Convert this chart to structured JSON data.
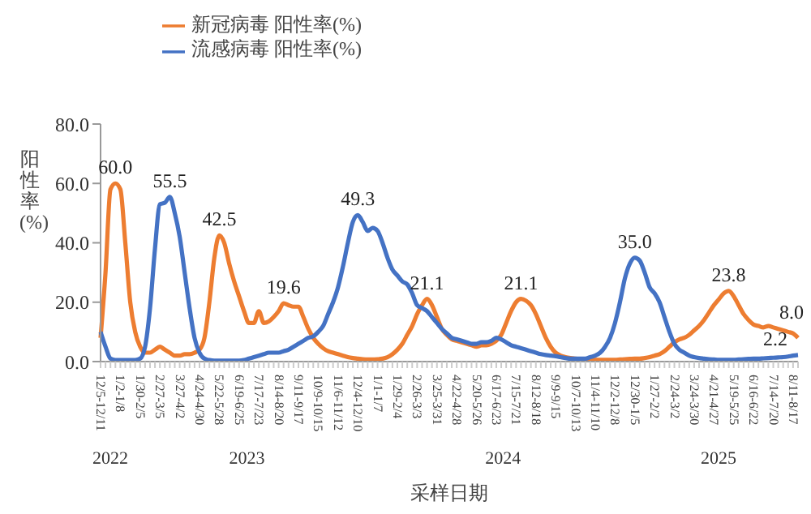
{
  "chart_data": {
    "type": "line",
    "xlabel": "采样日期",
    "ylabel": "阳性率(%)",
    "categories": [
      "12/5-12/11",
      null,
      null,
      null,
      "1/2-1/8",
      null,
      null,
      null,
      "1/30-2/5",
      null,
      null,
      null,
      "2/27-3/5",
      null,
      null,
      null,
      "3/27-4/2",
      null,
      null,
      null,
      "4/24-4/30",
      null,
      null,
      null,
      "5/22-5/28",
      null,
      null,
      null,
      "6/19-6/25",
      null,
      null,
      null,
      "7/17-7/23",
      null,
      null,
      null,
      "8/14-8/20",
      null,
      null,
      null,
      "9/11-9/17",
      null,
      null,
      null,
      "10/9-10/15",
      null,
      null,
      null,
      "11/6-11/12",
      null,
      null,
      null,
      "12/4-12/10",
      null,
      null,
      null,
      "1/1-1/7",
      null,
      null,
      null,
      "1/29-2/4",
      null,
      null,
      null,
      "2/26-3/3",
      null,
      null,
      null,
      "3/25-3/31",
      null,
      null,
      null,
      "4/22-4/28",
      null,
      null,
      null,
      "5/20-5/26",
      null,
      null,
      null,
      "6/17-6/23",
      null,
      null,
      null,
      "7/15-7/21",
      null,
      null,
      null,
      "8/12-8/18",
      null,
      null,
      null,
      "9/9-9/15",
      null,
      null,
      null,
      "10/7-10/13",
      null,
      null,
      null,
      "11/4-11/10",
      null,
      null,
      null,
      "12/2-12/8",
      null,
      null,
      null,
      "12/30-1/5",
      null,
      null,
      null,
      "1/27-2/2",
      null,
      null,
      null,
      "2/24-3/2",
      null,
      null,
      null,
      "3/24-3/30",
      null,
      null,
      null,
      "4/21-4/27",
      null,
      null,
      null,
      "5/19-5/25",
      null,
      null,
      null,
      "6/16-6/22",
      null,
      null,
      null,
      "7/14-7/20",
      null,
      null,
      null,
      "8/11-8/17",
      null
    ],
    "series": [
      {
        "name": "新冠病毒 阳性率(%)",
        "color": "#ed7d31",
        "values": [
          8,
          30,
          58,
          60,
          58,
          40,
          20,
          10,
          5,
          3,
          3,
          4,
          5,
          4,
          3,
          2,
          2,
          2.5,
          2.5,
          3,
          4,
          8,
          20,
          35,
          42.5,
          40,
          33,
          27,
          22,
          17,
          13,
          13,
          17,
          13,
          13.5,
          15,
          17,
          19.6,
          19,
          18.5,
          18.5,
          15,
          11,
          8,
          6,
          4.5,
          3.5,
          3,
          2.5,
          2,
          1.5,
          1.2,
          1,
          0.8,
          0.7,
          0.7,
          0.8,
          1,
          1.5,
          2.5,
          4,
          6,
          9,
          12,
          16,
          19,
          21.1,
          19,
          15,
          11,
          9,
          7.5,
          7,
          6.5,
          6,
          5.5,
          5,
          5.5,
          5.5,
          6,
          7,
          9,
          13,
          17,
          20,
          21.1,
          20.5,
          19,
          16,
          12,
          8,
          5,
          3,
          2,
          1.5,
          1.2,
          1,
          0.8,
          0.7,
          0.6,
          0.6,
          0.6,
          0.6,
          0.6,
          0.6,
          0.7,
          0.8,
          0.9,
          1,
          1,
          1.2,
          1.5,
          2,
          2.5,
          3.5,
          5,
          6.5,
          7.5,
          8,
          9,
          10.5,
          12,
          14,
          16.5,
          19,
          21,
          23,
          23.8,
          22,
          19,
          16,
          14,
          12.5,
          12,
          11.5,
          12,
          11.5,
          11,
          10.5,
          10,
          9.5,
          8.0
        ],
        "value_labels": [
          null,
          null,
          null,
          "60.0",
          null,
          null,
          null,
          null,
          null,
          null,
          null,
          null,
          null,
          null,
          null,
          null,
          null,
          null,
          null,
          null,
          null,
          null,
          null,
          null,
          "42.5",
          null,
          null,
          null,
          null,
          null,
          null,
          null,
          null,
          null,
          null,
          null,
          null,
          "19.6",
          null,
          null,
          null,
          null,
          null,
          null,
          null,
          null,
          null,
          null,
          null,
          null,
          null,
          null,
          null,
          null,
          null,
          null,
          null,
          null,
          null,
          null,
          null,
          null,
          null,
          null,
          null,
          null,
          "21.1",
          null,
          null,
          null,
          null,
          null,
          null,
          null,
          null,
          null,
          null,
          null,
          null,
          null,
          null,
          null,
          null,
          null,
          null,
          "21.1",
          null,
          null,
          null,
          null,
          null,
          null,
          null,
          null,
          null,
          null,
          null,
          null,
          null,
          null,
          null,
          null,
          null,
          null,
          null,
          null,
          null,
          null,
          null,
          null,
          null,
          null,
          null,
          null,
          null,
          null,
          null,
          null,
          null,
          null,
          null,
          null,
          null,
          null,
          null,
          null,
          null,
          "23.8",
          null,
          null,
          null,
          null,
          null,
          null,
          null,
          null,
          null,
          null,
          null,
          null,
          null,
          "8.0"
        ]
      },
      {
        "name": "流感病毒 阳性率(%)",
        "color": "#4472c4",
        "values": [
          10,
          5,
          1,
          0.5,
          0.5,
          0.5,
          0.5,
          0.5,
          1,
          5,
          18,
          38,
          53,
          53.5,
          55.5,
          50,
          42,
          30,
          18,
          8,
          3,
          1,
          0.5,
          0.3,
          0.3,
          0.3,
          0.3,
          0.3,
          0.3,
          0.5,
          1,
          1.5,
          2,
          2.5,
          3,
          3,
          3,
          3.5,
          4,
          5,
          6,
          7,
          8,
          8.5,
          10,
          12,
          16,
          20,
          25,
          32,
          40,
          47,
          49.3,
          47,
          44,
          45,
          44,
          40,
          35,
          31,
          29,
          27,
          26,
          23,
          19,
          18,
          17,
          15,
          13,
          11,
          9.5,
          8,
          7.5,
          7,
          6.5,
          6,
          6,
          6.5,
          6.5,
          7,
          8,
          7.5,
          6.5,
          5.5,
          5,
          4.5,
          4,
          3.5,
          3,
          2.5,
          2.2,
          2,
          1.8,
          1.5,
          1.2,
          1,
          1,
          1,
          1,
          1.5,
          2,
          3,
          5,
          8,
          13,
          20,
          28,
          33,
          35,
          34,
          30,
          25,
          23,
          20,
          15,
          10,
          6,
          4,
          3,
          2,
          1.5,
          1.2,
          1,
          0.8,
          0.7,
          0.6,
          0.6,
          0.6,
          0.6,
          0.7,
          0.8,
          0.9,
          1,
          1,
          1.1,
          1.2,
          1.3,
          1.4,
          1.5,
          1.7,
          2,
          2.2
        ],
        "value_labels": [
          null,
          null,
          null,
          null,
          null,
          null,
          null,
          null,
          null,
          null,
          null,
          null,
          null,
          null,
          "55.5",
          null,
          null,
          null,
          null,
          null,
          null,
          null,
          null,
          null,
          null,
          null,
          null,
          null,
          null,
          null,
          null,
          null,
          null,
          null,
          null,
          null,
          null,
          null,
          null,
          null,
          null,
          null,
          null,
          null,
          null,
          null,
          null,
          null,
          null,
          null,
          null,
          null,
          "49.3",
          null,
          null,
          null,
          null,
          null,
          null,
          null,
          null,
          null,
          null,
          null,
          null,
          null,
          null,
          null,
          null,
          null,
          null,
          null,
          null,
          null,
          null,
          null,
          null,
          null,
          null,
          null,
          null,
          null,
          null,
          null,
          null,
          null,
          null,
          null,
          null,
          null,
          null,
          null,
          null,
          null,
          null,
          null,
          null,
          null,
          null,
          null,
          null,
          null,
          null,
          null,
          null,
          null,
          null,
          null,
          "35.0",
          null,
          null,
          null,
          null,
          null,
          null,
          null,
          null,
          null,
          null,
          null,
          null,
          null,
          null,
          null,
          null,
          null,
          null,
          null,
          null,
          null,
          null,
          null,
          null,
          null,
          null,
          null,
          null,
          null,
          null,
          null,
          null,
          "2.2"
        ]
      }
    ],
    "ylim": [
      0,
      80
    ],
    "yticks": [
      {
        "value": 0,
        "label": "0.0"
      },
      {
        "value": 20,
        "label": "20.0"
      },
      {
        "value": 40,
        "label": "40.0"
      },
      {
        "value": 60,
        "label": "60.0"
      },
      {
        "value": 80,
        "label": "80.0"
      }
    ],
    "annotations": [
      "2022",
      "2023",
      "2024",
      "2025"
    ],
    "grid": false,
    "legend": "top",
    "marker": "none",
    "line_style": "solid"
  }
}
